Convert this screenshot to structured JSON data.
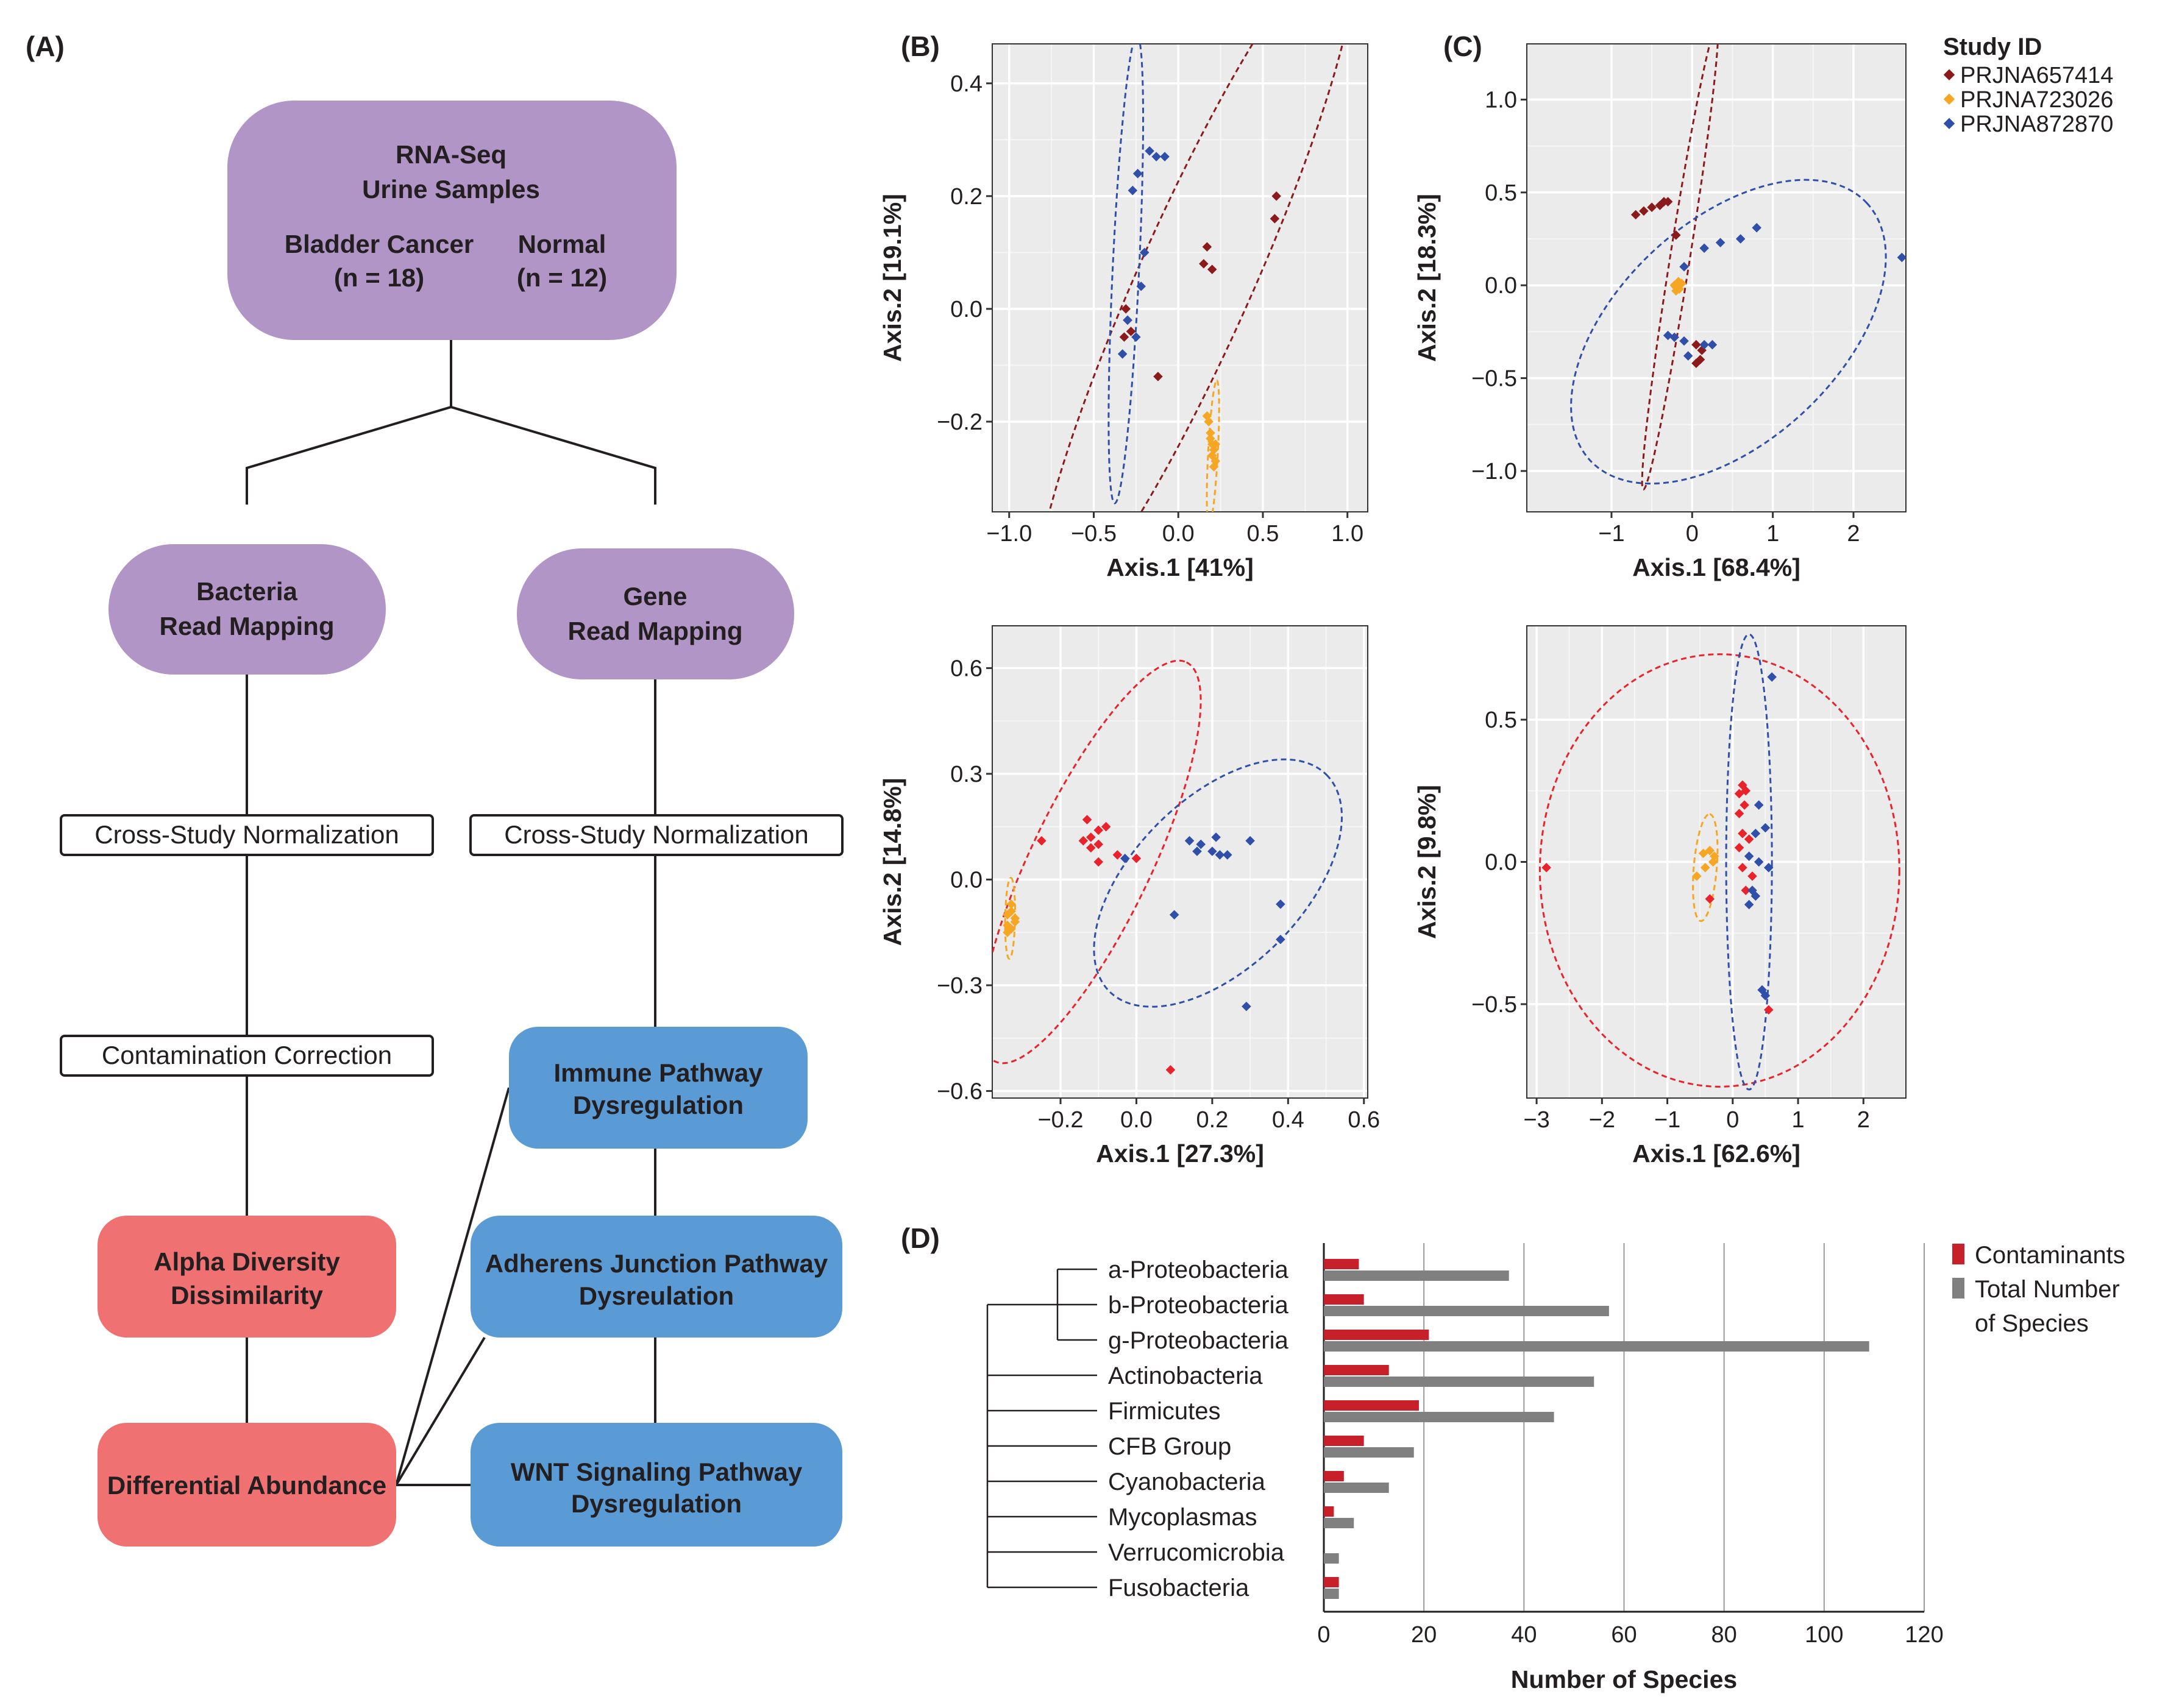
{
  "panel_labels": {
    "a": "(A)",
    "b": "(B)",
    "c": "(C)",
    "d": "(D)"
  },
  "colors": {
    "purple": "#b195c6",
    "red": "#f07171",
    "blue": "#5b9bd5",
    "dark_red": "#8b1a1a",
    "orange": "#f5a623",
    "navy": "#2f4fa8",
    "bright_red": "#e8232b",
    "bar_red": "#c8202a",
    "bar_gray": "#808080",
    "plot_bg": "#ebebeb"
  },
  "flowchart": {
    "top": {
      "line1": "RNA-Seq",
      "line2": "Urine Samples",
      "cancer_label": "Bladder Cancer",
      "cancer_n": "(n = 18)",
      "normal_label": "Normal",
      "normal_n": "(n = 12)"
    },
    "bacteria": {
      "line1": "Bacteria",
      "line2": "Read Mapping"
    },
    "gene": {
      "line1": "Gene",
      "line2": "Read Mapping"
    },
    "norm_left": "Cross-Study Normalization",
    "norm_right": "Cross-Study Normalization",
    "contamination": "Contamination Correction",
    "immune": {
      "line1": "Immune Pathway",
      "line2": "Dysregulation"
    },
    "adherens": {
      "line1": "Adherens Junction Pathway",
      "line2": "Dysreulation"
    },
    "wnt": {
      "line1": "WNT Signaling Pathway",
      "line2": "Dysregulation"
    },
    "alpha": {
      "line1": "Alpha Diversity",
      "line2": "Dissimilarity"
    },
    "diff": "Differential Abundance"
  },
  "legend": {
    "title": "Study ID",
    "items": [
      {
        "label": "PRJNA657414",
        "color": "#8b1a1a"
      },
      {
        "label": "PRJNA723026",
        "color": "#f5a623"
      },
      {
        "label": "PRJNA872870",
        "color": "#2f4fa8"
      }
    ]
  },
  "chart_data": [
    {
      "type": "scatter",
      "panel": "B-top",
      "xlabel": "Axis.1   [41%]",
      "ylabel": "Axis.2   [19.1%]",
      "xlim": [
        -1.1,
        1.12
      ],
      "ylim": [
        -0.36,
        0.47
      ],
      "xticks": [
        {
          "v": -1.0,
          "t": "−1.0"
        },
        {
          "v": -0.5,
          "t": "−0.5"
        },
        {
          "v": 0.0,
          "t": "0.0"
        },
        {
          "v": 0.5,
          "t": "0.5"
        },
        {
          "v": 1.0,
          "t": "1.0"
        }
      ],
      "yticks": [
        {
          "v": -0.2,
          "t": "−0.2"
        },
        {
          "v": 0.0,
          "t": "0.0"
        },
        {
          "v": 0.2,
          "t": "0.2"
        },
        {
          "v": 0.4,
          "t": "0.4"
        }
      ],
      "series": [
        {
          "name": "PRJNA657414",
          "color": "#8b1a1a",
          "points": [
            [
              0.58,
              0.2
            ],
            [
              0.57,
              0.16
            ],
            [
              0.17,
              0.11
            ],
            [
              0.15,
              0.08
            ],
            [
              0.2,
              0.07
            ],
            [
              -0.3,
              -0.02
            ],
            [
              -0.28,
              -0.04
            ],
            [
              -0.31,
              0.0
            ],
            [
              -0.12,
              -0.12
            ],
            [
              -0.32,
              -0.05
            ]
          ],
          "ellipse": {
            "cx": 0.1,
            "cy": 0.05,
            "rx": 1.08,
            "ry": 0.12,
            "angle": 34
          }
        },
        {
          "name": "PRJNA723026",
          "color": "#f5a623",
          "points": [
            [
              0.17,
              -0.19
            ],
            [
              0.19,
              -0.22
            ],
            [
              0.2,
              -0.24
            ],
            [
              0.21,
              -0.25
            ],
            [
              0.22,
              -0.27
            ],
            [
              0.2,
              -0.26
            ],
            [
              0.21,
              -0.28
            ],
            [
              0.19,
              -0.23
            ],
            [
              0.22,
              -0.24
            ],
            [
              0.18,
              -0.2
            ]
          ],
          "ellipse": {
            "cx": 0.205,
            "cy": -0.255,
            "rx": 0.13,
            "ry": 0.025,
            "angle": 80
          }
        },
        {
          "name": "PRJNA872870",
          "color": "#2f4fa8",
          "points": [
            [
              -0.17,
              0.28
            ],
            [
              -0.13,
              0.27
            ],
            [
              -0.08,
              0.27
            ],
            [
              -0.24,
              0.24
            ],
            [
              -0.27,
              0.21
            ],
            [
              -0.2,
              0.1
            ],
            [
              -0.22,
              0.04
            ],
            [
              -0.3,
              -0.02
            ],
            [
              -0.33,
              -0.08
            ],
            [
              -0.25,
              -0.05
            ]
          ],
          "ellipse": {
            "cx": -0.31,
            "cy": 0.07,
            "rx": 0.42,
            "ry": 0.07,
            "angle": 81
          }
        }
      ]
    },
    {
      "type": "scatter",
      "panel": "C-top",
      "xlabel": "Axis.1   [68.4%]",
      "ylabel": "Axis.2   [18.3%]",
      "xlim": [
        -2.05,
        2.65
      ],
      "ylim": [
        -1.22,
        1.3
      ],
      "xticks": [
        {
          "v": -1,
          "t": "−1"
        },
        {
          "v": 0,
          "t": "0"
        },
        {
          "v": 1,
          "t": "1"
        },
        {
          "v": 2,
          "t": "2"
        }
      ],
      "yticks": [
        {
          "v": -1.0,
          "t": "−1.0"
        },
        {
          "v": -0.5,
          "t": "−0.5"
        },
        {
          "v": 0.0,
          "t": "0.0"
        },
        {
          "v": 0.5,
          "t": "0.5"
        },
        {
          "v": 1.0,
          "t": "1.0"
        }
      ],
      "series": [
        {
          "name": "PRJNA657414",
          "color": "#8b1a1a",
          "points": [
            [
              -0.5,
              0.42
            ],
            [
              -0.4,
              0.43
            ],
            [
              -0.3,
              0.45
            ],
            [
              -0.6,
              0.4
            ],
            [
              -0.7,
              0.38
            ],
            [
              -0.35,
              0.45
            ],
            [
              -0.2,
              0.27
            ],
            [
              0.05,
              -0.32
            ],
            [
              0.1,
              -0.4
            ],
            [
              0.12,
              -0.35
            ],
            [
              0.05,
              -0.42
            ]
          ],
          "ellipse": {
            "cx": -0.15,
            "cy": 0.15,
            "rx": 1.33,
            "ry": 0.1,
            "angle": 70
          }
        },
        {
          "name": "PRJNA723026",
          "color": "#f5a623",
          "points": [
            [
              -0.2,
              -0.01
            ],
            [
              -0.18,
              0.0
            ],
            [
              -0.15,
              0.01
            ],
            [
              -0.22,
              0.0
            ],
            [
              -0.16,
              -0.02
            ],
            [
              -0.13,
              0.01
            ],
            [
              -0.2,
              -0.03
            ],
            [
              -0.17,
              0.02
            ]
          ],
          "ellipse": null
        },
        {
          "name": "PRJNA872870",
          "color": "#2f4fa8",
          "points": [
            [
              0.8,
              0.31
            ],
            [
              0.6,
              0.25
            ],
            [
              0.35,
              0.23
            ],
            [
              0.15,
              0.2
            ],
            [
              -0.1,
              0.1
            ],
            [
              -0.3,
              -0.27
            ],
            [
              -0.22,
              -0.28
            ],
            [
              -0.05,
              -0.38
            ],
            [
              0.15,
              -0.32
            ],
            [
              0.25,
              -0.32
            ],
            [
              2.6,
              0.15
            ],
            [
              -0.1,
              -0.3
            ]
          ],
          "ellipse": {
            "cx": 0.45,
            "cy": -0.25,
            "rx": 1.85,
            "ry": 0.63,
            "angle": 22
          }
        }
      ]
    },
    {
      "type": "scatter",
      "panel": "B-bottom",
      "xlabel": "Axis.1   [27.3%]",
      "ylabel": "Axis.2   [14.8%]",
      "xlim": [
        -0.38,
        0.61
      ],
      "ylim": [
        -0.62,
        0.72
      ],
      "xticks": [
        {
          "v": -0.2,
          "t": "−0.2"
        },
        {
          "v": 0.0,
          "t": "0.0"
        },
        {
          "v": 0.2,
          "t": "0.2"
        },
        {
          "v": 0.4,
          "t": "0.4"
        },
        {
          "v": 0.6,
          "t": "0.6"
        }
      ],
      "yticks": [
        {
          "v": -0.6,
          "t": "−0.6"
        },
        {
          "v": -0.3,
          "t": "−0.3"
        },
        {
          "v": 0.0,
          "t": "0.0"
        },
        {
          "v": 0.3,
          "t": "0.3"
        },
        {
          "v": 0.6,
          "t": "0.6"
        }
      ],
      "series": [
        {
          "name": "PRJNA657414",
          "color": "#e8232b",
          "points": [
            [
              -0.25,
              0.11
            ],
            [
              -0.13,
              0.17
            ],
            [
              -0.1,
              0.14
            ],
            [
              -0.08,
              0.15
            ],
            [
              -0.12,
              0.12
            ],
            [
              -0.1,
              0.1
            ],
            [
              -0.14,
              0.11
            ],
            [
              -0.12,
              0.09
            ],
            [
              -0.05,
              0.07
            ],
            [
              -0.1,
              0.05
            ],
            [
              0.0,
              0.06
            ],
            [
              0.09,
              -0.54
            ]
          ],
          "ellipse": {
            "cx": -0.12,
            "cy": 0.05,
            "rx": 0.62,
            "ry": 0.16,
            "angle": 66
          }
        },
        {
          "name": "PRJNA723026",
          "color": "#f5a623",
          "points": [
            [
              -0.33,
              -0.07
            ],
            [
              -0.34,
              -0.1
            ],
            [
              -0.32,
              -0.12
            ],
            [
              -0.33,
              -0.14
            ],
            [
              -0.34,
              -0.15
            ],
            [
              -0.32,
              -0.11
            ],
            [
              -0.33,
              -0.09
            ],
            [
              -0.34,
              -0.13
            ]
          ],
          "ellipse": {
            "cx": -0.333,
            "cy": -0.11,
            "rx": 0.115,
            "ry": 0.013,
            "angle": 89
          }
        },
        {
          "name": "PRJNA872870",
          "color": "#2f4fa8",
          "points": [
            [
              0.14,
              0.11
            ],
            [
              0.17,
              0.1
            ],
            [
              0.21,
              0.12
            ],
            [
              0.16,
              0.08
            ],
            [
              0.22,
              0.07
            ],
            [
              0.24,
              0.07
            ],
            [
              0.3,
              0.11
            ],
            [
              0.2,
              0.08
            ],
            [
              -0.03,
              0.06
            ],
            [
              0.1,
              -0.1
            ],
            [
              0.38,
              -0.07
            ],
            [
              0.38,
              -0.17
            ],
            [
              0.29,
              -0.36
            ]
          ],
          "ellipse": {
            "cx": 0.215,
            "cy": -0.01,
            "rx": 0.42,
            "ry": 0.23,
            "angle": 47
          }
        }
      ]
    },
    {
      "type": "scatter",
      "panel": "C-bottom",
      "xlabel": "Axis.1   [62.6%]",
      "ylabel": "Axis.2   [9.8%]",
      "xlim": [
        -3.15,
        2.65
      ],
      "ylim": [
        -0.83,
        0.83
      ],
      "xticks": [
        {
          "v": -3,
          "t": "−3"
        },
        {
          "v": -2,
          "t": "−2"
        },
        {
          "v": -1,
          "t": "−1"
        },
        {
          "v": 0,
          "t": "0"
        },
        {
          "v": 1,
          "t": "1"
        },
        {
          "v": 2,
          "t": "2"
        }
      ],
      "yticks": [
        {
          "v": -0.5,
          "t": "−0.5"
        },
        {
          "v": 0.0,
          "t": "0.0"
        },
        {
          "v": 0.5,
          "t": "0.5"
        }
      ],
      "series": [
        {
          "name": "PRJNA657414",
          "color": "#e8232b",
          "points": [
            [
              -2.85,
              -0.02
            ],
            [
              0.1,
              0.24
            ],
            [
              0.15,
              0.27
            ],
            [
              0.2,
              0.25
            ],
            [
              0.18,
              0.2
            ],
            [
              0.1,
              0.17
            ],
            [
              0.15,
              0.1
            ],
            [
              0.25,
              0.08
            ],
            [
              0.1,
              0.05
            ],
            [
              0.15,
              -0.02
            ],
            [
              0.2,
              -0.1
            ],
            [
              0.3,
              -0.05
            ],
            [
              0.55,
              -0.52
            ],
            [
              -0.35,
              -0.13
            ]
          ],
          "ellipse": {
            "cx": -0.2,
            "cy": -0.03,
            "rx": 2.75,
            "ry": 0.76,
            "angle": 0
          }
        },
        {
          "name": "PRJNA723026",
          "color": "#f5a623",
          "points": [
            [
              -0.55,
              -0.05
            ],
            [
              -0.45,
              0.03
            ],
            [
              -0.35,
              0.04
            ],
            [
              -0.28,
              0.02
            ],
            [
              -0.42,
              -0.02
            ],
            [
              -0.3,
              0.0
            ]
          ],
          "ellipse": {
            "cx": -0.42,
            "cy": -0.02,
            "rx": 0.2,
            "ry": 0.1,
            "angle": 70
          }
        },
        {
          "name": "PRJNA872870",
          "color": "#2f4fa8",
          "points": [
            [
              0.6,
              0.65
            ],
            [
              0.4,
              0.2
            ],
            [
              0.5,
              0.12
            ],
            [
              0.35,
              0.1
            ],
            [
              0.25,
              0.02
            ],
            [
              0.4,
              0.0
            ],
            [
              0.55,
              -0.02
            ],
            [
              0.3,
              -0.1
            ],
            [
              0.25,
              -0.15
            ],
            [
              0.45,
              -0.45
            ],
            [
              0.5,
              -0.47
            ],
            [
              0.35,
              -0.12
            ]
          ],
          "ellipse": {
            "cx": 0.25,
            "cy": 0.0,
            "rx": 0.35,
            "ry": 0.8,
            "angle": 0
          }
        }
      ]
    },
    {
      "type": "bar",
      "panel": "D",
      "orientation": "horizontal",
      "categories": [
        "a-Proteobacteria",
        "b-Proteobacteria",
        "g-Proteobacteria",
        "Actinobacteria",
        "Firmicutes",
        "CFB Group",
        "Cyanobacteria",
        "Mycoplasmas",
        "Verrucomicrobia",
        "Fusobacteria"
      ],
      "series": [
        {
          "name": "Contaminants",
          "color": "#c8202a",
          "values": [
            7,
            8,
            21,
            13,
            19,
            8,
            4,
            2,
            0,
            3
          ]
        },
        {
          "name": "Total Number of Species",
          "color": "#808080",
          "values": [
            37,
            57,
            109,
            54,
            46,
            18,
            13,
            6,
            3,
            3
          ]
        }
      ],
      "xlim": [
        0,
        120
      ],
      "xticks": [
        {
          "v": 0,
          "t": "0"
        },
        {
          "v": 20,
          "t": "20"
        },
        {
          "v": 40,
          "t": "40"
        },
        {
          "v": 60,
          "t": "60"
        },
        {
          "v": 80,
          "t": "80"
        },
        {
          "v": 100,
          "t": "100"
        },
        {
          "v": 120,
          "t": "120"
        }
      ],
      "xlabel": "Number of Species",
      "legend": {
        "contaminants": "Contaminants",
        "total_line1": "Total Number",
        "total_line2": "of Species"
      }
    }
  ]
}
